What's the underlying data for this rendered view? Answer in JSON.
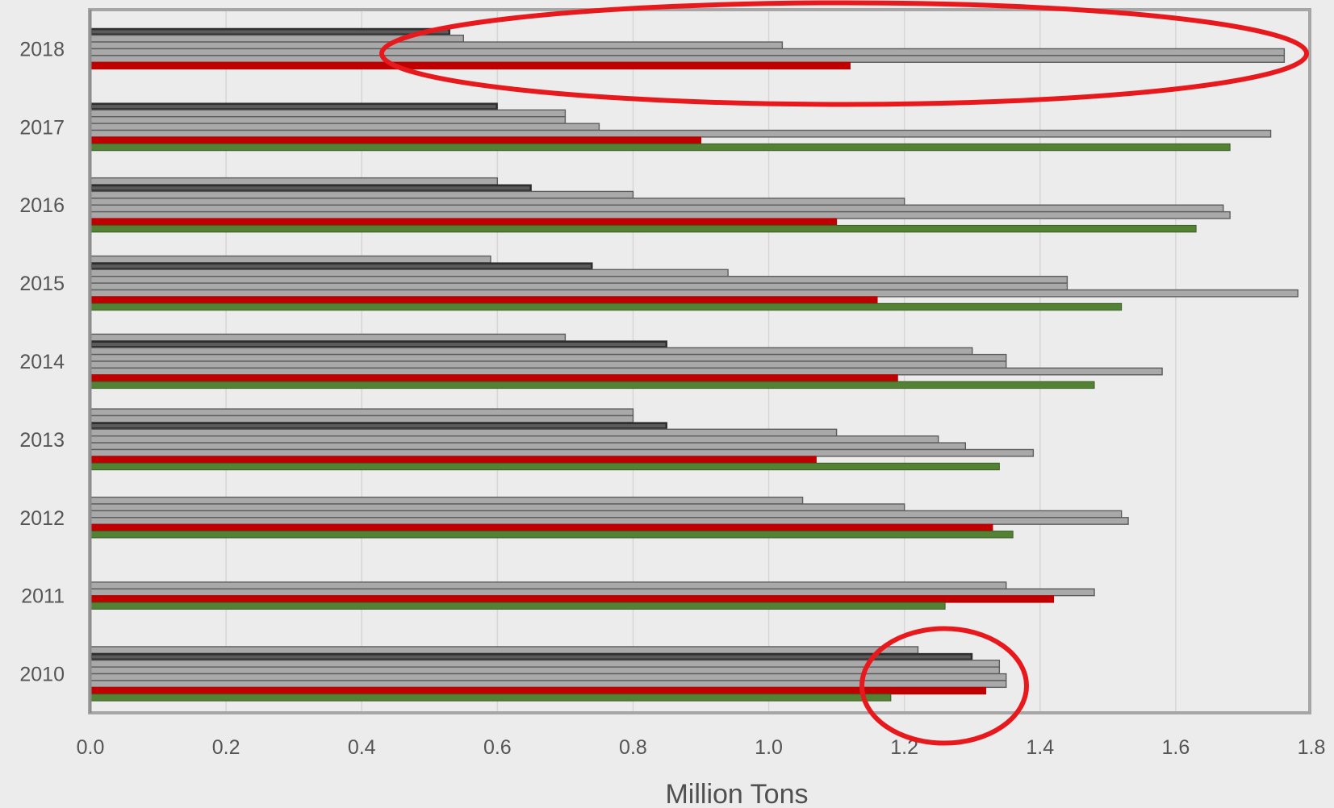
{
  "chart_data": {
    "type": "bar",
    "orientation": "horizontal",
    "title": "",
    "xlabel": "Million Tons",
    "ylabel": "",
    "xlim": [
      0,
      1.8
    ],
    "xticks": [
      "0.0",
      "0.2",
      "0.4",
      "0.6",
      "0.8",
      "1.0",
      "1.2",
      "1.4",
      "1.6",
      "1.8"
    ],
    "grid": "vertical",
    "legend": "none",
    "categories": [
      "2018",
      "2017",
      "2016",
      "2015",
      "2014",
      "2013",
      "2012",
      "2011",
      "2010"
    ],
    "bars": {
      "2018": [
        {
          "value": 0.53,
          "style": "dark"
        },
        {
          "value": 0.55,
          "style": "gray"
        },
        {
          "value": 1.02,
          "style": "gray"
        },
        {
          "value": 1.76,
          "style": "gray"
        },
        {
          "value": 1.76,
          "style": "gray"
        },
        {
          "value": 1.12,
          "style": "red"
        }
      ],
      "2017": [
        {
          "value": 0.6,
          "style": "dark"
        },
        {
          "value": 0.7,
          "style": "gray"
        },
        {
          "value": 0.7,
          "style": "gray"
        },
        {
          "value": 0.75,
          "style": "gray"
        },
        {
          "value": 1.74,
          "style": "gray"
        },
        {
          "value": 0.9,
          "style": "red"
        },
        {
          "value": 1.68,
          "style": "green"
        }
      ],
      "2016": [
        {
          "value": 0.6,
          "style": "gray"
        },
        {
          "value": 0.65,
          "style": "dark"
        },
        {
          "value": 0.8,
          "style": "gray"
        },
        {
          "value": 1.2,
          "style": "gray"
        },
        {
          "value": 1.67,
          "style": "gray"
        },
        {
          "value": 1.68,
          "style": "gray"
        },
        {
          "value": 1.1,
          "style": "red"
        },
        {
          "value": 1.63,
          "style": "green"
        }
      ],
      "2015": [
        {
          "value": 0.59,
          "style": "gray"
        },
        {
          "value": 0.74,
          "style": "dark"
        },
        {
          "value": 0.94,
          "style": "gray"
        },
        {
          "value": 1.44,
          "style": "gray"
        },
        {
          "value": 1.44,
          "style": "gray"
        },
        {
          "value": 1.78,
          "style": "gray"
        },
        {
          "value": 1.16,
          "style": "red"
        },
        {
          "value": 1.52,
          "style": "green"
        }
      ],
      "2014": [
        {
          "value": 0.7,
          "style": "gray"
        },
        {
          "value": 0.85,
          "style": "dark"
        },
        {
          "value": 1.3,
          "style": "gray"
        },
        {
          "value": 1.35,
          "style": "gray"
        },
        {
          "value": 1.35,
          "style": "gray"
        },
        {
          "value": 1.58,
          "style": "gray"
        },
        {
          "value": 1.19,
          "style": "red"
        },
        {
          "value": 1.48,
          "style": "green"
        }
      ],
      "2013": [
        {
          "value": 0.8,
          "style": "gray"
        },
        {
          "value": 0.8,
          "style": "gray"
        },
        {
          "value": 0.85,
          "style": "dark"
        },
        {
          "value": 1.1,
          "style": "gray"
        },
        {
          "value": 1.25,
          "style": "gray"
        },
        {
          "value": 1.29,
          "style": "gray"
        },
        {
          "value": 1.39,
          "style": "gray"
        },
        {
          "value": 1.07,
          "style": "red"
        },
        {
          "value": 1.34,
          "style": "green"
        }
      ],
      "2012": [
        {
          "value": 1.05,
          "style": "gray"
        },
        {
          "value": 1.2,
          "style": "gray"
        },
        {
          "value": 1.52,
          "style": "gray"
        },
        {
          "value": 1.53,
          "style": "gray"
        },
        {
          "value": 1.33,
          "style": "red"
        },
        {
          "value": 1.36,
          "style": "green"
        }
      ],
      "2011": [
        {
          "value": 1.35,
          "style": "gray"
        },
        {
          "value": 1.48,
          "style": "gray"
        },
        {
          "value": 1.42,
          "style": "red"
        },
        {
          "value": 1.26,
          "style": "green"
        }
      ],
      "2010": [
        {
          "value": 1.22,
          "style": "gray"
        },
        {
          "value": 1.3,
          "style": "dark"
        },
        {
          "value": 1.34,
          "style": "gray"
        },
        {
          "value": 1.34,
          "style": "gray"
        },
        {
          "value": 1.35,
          "style": "gray"
        },
        {
          "value": 1.35,
          "style": "gray"
        },
        {
          "value": 1.32,
          "style": "red"
        },
        {
          "value": 1.18,
          "style": "green"
        }
      ]
    },
    "highlights": [
      {
        "category": "2018",
        "shape": "ellipse",
        "color": "#e8191d"
      },
      {
        "category": "2010",
        "shape": "circle",
        "color": "#e8191d"
      }
    ],
    "colors": {
      "gray_fill": "#a9a9a9",
      "gray_edge": "#5d5d5d",
      "dark_fill": "#5b5b5b",
      "red": "#c00000",
      "green": "#548235",
      "frame": "#a6a6a6",
      "grid": "#d6d6d6",
      "highlight": "#e8191d"
    }
  }
}
